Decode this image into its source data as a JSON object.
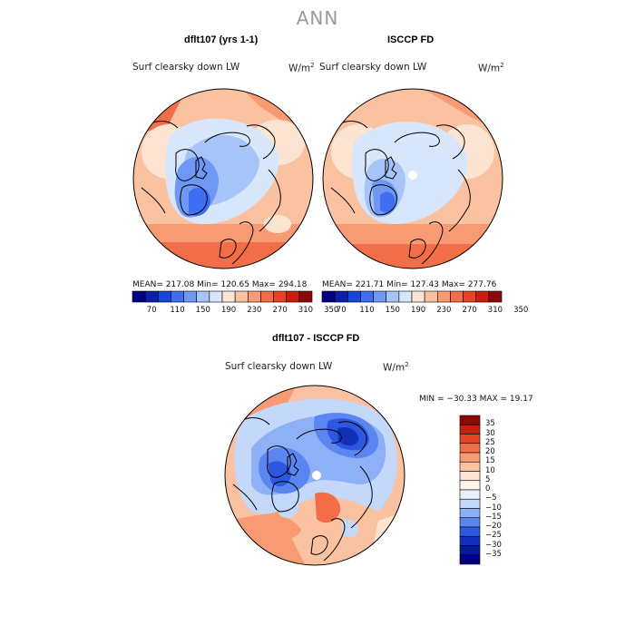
{
  "main_title": "ANN",
  "panels": [
    {
      "title": "dflt107 (yrs 1-1)",
      "variable": "Surf clearsky down LW",
      "units": "W/m",
      "units_sup": "2",
      "stats": "MEAN= 217.08   Min= 120.65   Max= 294.18"
    },
    {
      "title": "ISCCP FD",
      "variable": "Surf clearsky down LW",
      "units": "W/m",
      "units_sup": "2",
      "stats": "MEAN= 221.71   Min= 127.43   Max= 277.76"
    },
    {
      "title": "dflt107 - ISCCP FD",
      "variable": "Surf clearsky down LW",
      "units": "W/m",
      "units_sup": "2",
      "stats": "MIN = −30.33  MAX =  19.17"
    }
  ],
  "colorbar_abs": {
    "labels": [
      "70",
      "110",
      "150",
      "190",
      "230",
      "270",
      "310",
      "350"
    ],
    "colors": [
      "#00007f",
      "#0b1fa8",
      "#1846d8",
      "#3f6ff0",
      "#6f98f4",
      "#a6c4f8",
      "#d7e6fb",
      "#fde4d2",
      "#fbc2a2",
      "#f89a73",
      "#f26e48",
      "#e54524",
      "#c81e0e",
      "#8c0a05"
    ]
  },
  "colorbar_diff": {
    "labels": [
      "35",
      "30",
      "25",
      "20",
      "15",
      "10",
      "5",
      "0",
      "−5",
      "−10",
      "−15",
      "−20",
      "−25",
      "−30",
      "−35"
    ],
    "colors": [
      "#8c0a05",
      "#c81e0e",
      "#e54524",
      "#f26e48",
      "#f89a73",
      "#fbc2a2",
      "#fde4d2",
      "#fff3ea",
      "#e9f1fd",
      "#c4d8fa",
      "#8db0f6",
      "#5b86f1",
      "#2d57e0",
      "#1331b8",
      "#061a98",
      "#00007f"
    ]
  }
}
